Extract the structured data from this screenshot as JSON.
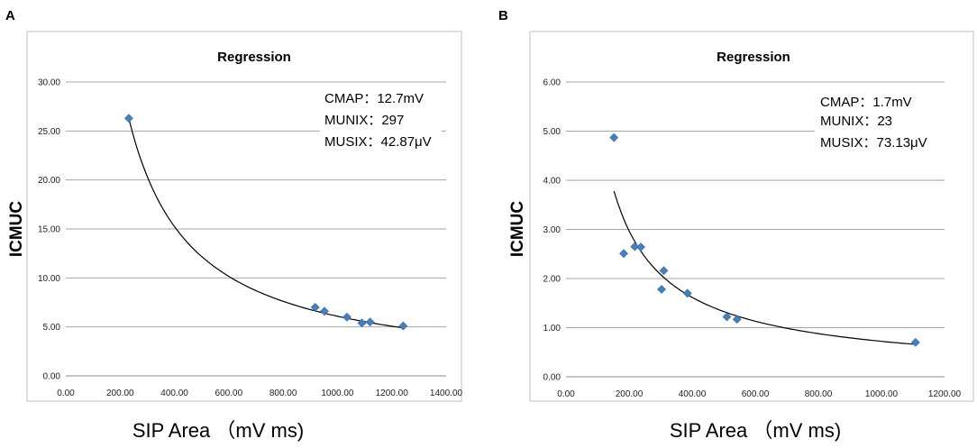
{
  "chart_data": [
    {
      "type": "scatter",
      "panel": "A",
      "title": "Regression",
      "xlabel": "SIP Area （mV ms)",
      "ylabel": "ICMUC",
      "xlim": [
        0,
        1400
      ],
      "ylim": [
        0,
        30
      ],
      "x_ticks": [
        "0.00",
        "200.00",
        "400.00",
        "600.00",
        "800.00",
        "1000.00",
        "1200.00",
        "1400.00"
      ],
      "y_ticks": [
        "0.00",
        "5.00",
        "10.00",
        "15.00",
        "20.00",
        "25.00",
        "30.00"
      ],
      "grid": "horizontal",
      "annotations": [
        "CMAP：12.7mV",
        "MUNIX：297",
        "MUSIX：42.87μV"
      ],
      "series": [
        {
          "name": "data",
          "points": [
            [
              232,
              26.3
            ],
            [
              918,
              7.0
            ],
            [
              952,
              6.6
            ],
            [
              1035,
              6.0
            ],
            [
              1090,
              5.4
            ],
            [
              1120,
              5.5
            ],
            [
              1242,
              5.1
            ]
          ],
          "color": "#4a7ebb"
        }
      ],
      "trendline": {
        "type": "power",
        "x_range": [
          232,
          1242
        ],
        "y_start": 26.3,
        "y_end": 4.9
      }
    },
    {
      "type": "scatter",
      "panel": "B",
      "title": "Regression",
      "xlabel": "SIP Area （mV ms)",
      "ylabel": "ICMUC",
      "xlim": [
        0,
        1200
      ],
      "ylim": [
        0,
        6
      ],
      "x_ticks": [
        "0.00",
        "200.00",
        "400.00",
        "600.00",
        "800.00",
        "1000.00",
        "1200.00"
      ],
      "y_ticks": [
        "0.00",
        "1.00",
        "2.00",
        "3.00",
        "4.00",
        "5.00",
        "6.00"
      ],
      "grid": "horizontal",
      "annotations": [
        "CMAP：1.7mV",
        "MUNIX：23",
        "MUSIX：73.13μV"
      ],
      "series": [
        {
          "name": "data",
          "points": [
            [
              152,
              4.87
            ],
            [
              183,
              2.51
            ],
            [
              218,
              2.65
            ],
            [
              237,
              2.64
            ],
            [
              303,
              1.78
            ],
            [
              310,
              2.16
            ],
            [
              385,
              1.7
            ],
            [
              510,
              1.22
            ],
            [
              542,
              1.17
            ],
            [
              1108,
              0.7
            ]
          ],
          "color": "#4a7ebb"
        }
      ],
      "trendline": {
        "type": "power",
        "x_range": [
          152,
          1108
        ],
        "y_start": 3.78,
        "y_end": 0.66
      }
    }
  ]
}
